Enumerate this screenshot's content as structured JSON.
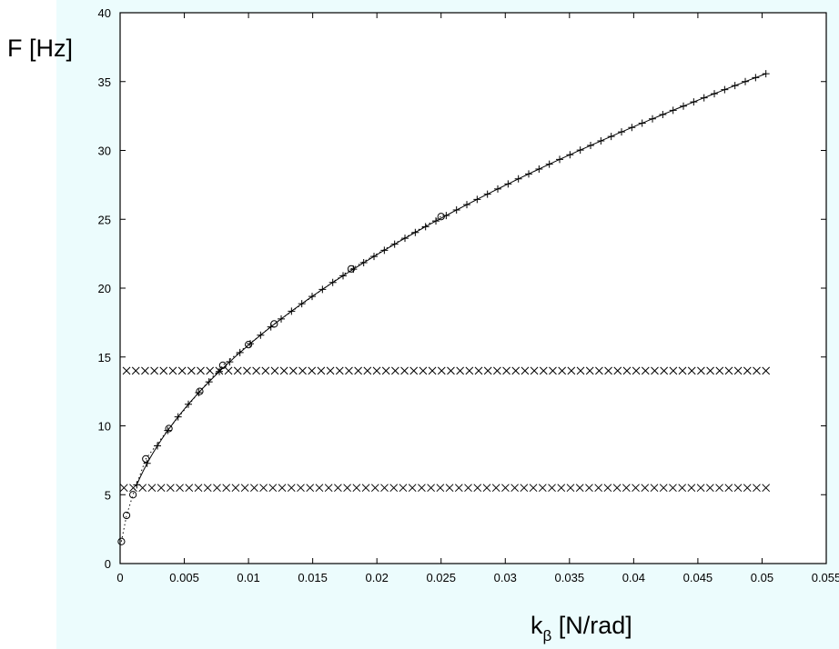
{
  "chart_data": {
    "type": "scatter",
    "title": "",
    "ylabel": "F [Hz]",
    "xlabel_main": "k",
    "xlabel_sub": "β",
    "xlabel_unit": " [N/rad]",
    "xlim": [
      0,
      0.055
    ],
    "ylim": [
      0,
      40
    ],
    "grid": false,
    "xticks": [
      0,
      0.005,
      0.01,
      0.015,
      0.02,
      0.025,
      0.03,
      0.035,
      0.04,
      0.045,
      0.05,
      0.055
    ],
    "xtick_labels": [
      "0",
      "0.005",
      "0.01",
      "0.015",
      "0.02",
      "0.025",
      "0.03",
      "0.035",
      "0.04",
      "0.045",
      "0.05",
      "0.055"
    ],
    "yticks": [
      0,
      5,
      10,
      15,
      20,
      25,
      30,
      35,
      40
    ],
    "ytick_labels": [
      "0",
      "5",
      "10",
      "15",
      "20",
      "25",
      "30",
      "35",
      "40"
    ],
    "series": [
      {
        "marker": "circle",
        "line": "dotted",
        "x": [
          0.0001,
          0.0005,
          0.001,
          0.002,
          0.0038,
          0.0062,
          0.008,
          0.01,
          0.012,
          0.018,
          0.025
        ],
        "y": [
          1.6,
          3.5,
          5.0,
          7.6,
          9.8,
          12.5,
          14.4,
          15.9,
          17.4,
          21.4,
          25.2
        ]
      },
      {
        "marker": "plus",
        "line": "solid",
        "curve": {
          "model": "power",
          "coef": 158.6,
          "exponent": 0.5
        },
        "x_start": 0.0013,
        "x_end": 0.0503,
        "count": 62
      },
      {
        "marker": "x",
        "line": "none",
        "constant_y": 14.0,
        "x_start": 0.0005,
        "x_end": 0.0503,
        "count": 70
      },
      {
        "marker": "x",
        "line": "none",
        "constant_y": 5.5,
        "x_start": 0.0003,
        "x_end": 0.0503,
        "count": 70
      }
    ]
  }
}
